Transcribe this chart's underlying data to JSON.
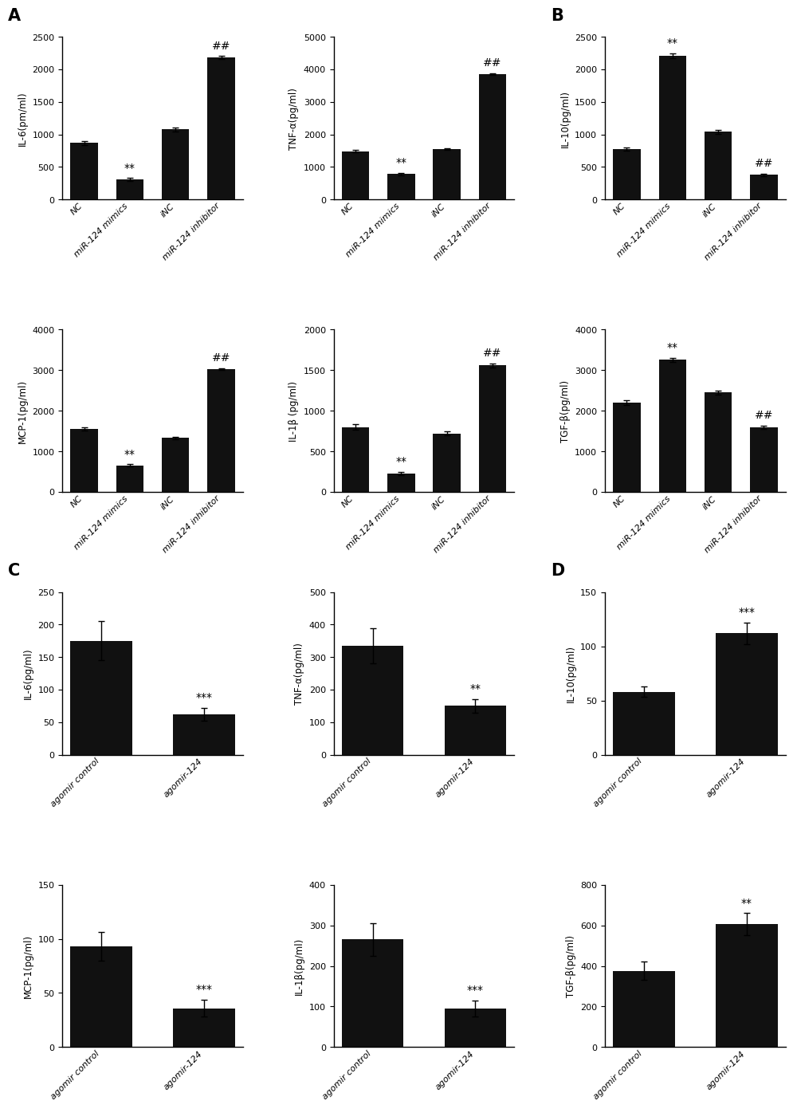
{
  "panel_A": {
    "IL6": {
      "categories": [
        "NC",
        "miR-124 mimics",
        "iNC",
        "miR-124 inhibitor"
      ],
      "values": [
        870,
        310,
        1080,
        2180
      ],
      "errors": [
        30,
        20,
        30,
        25
      ],
      "ylabel": "IL-6(pm/ml)",
      "ylim": [
        0,
        2500
      ],
      "yticks": [
        0,
        500,
        1000,
        1500,
        2000,
        2500
      ],
      "annotations": [
        {
          "idx": 1,
          "text": "**"
        },
        {
          "idx": 3,
          "text": "##"
        }
      ]
    },
    "TNFa": {
      "categories": [
        "NC",
        "miR-124 mimics",
        "iNC",
        "miR-124 inhibitor"
      ],
      "values": [
        1480,
        780,
        1550,
        3850
      ],
      "errors": [
        40,
        35,
        30,
        30
      ],
      "ylabel": "TNF-α(pg/ml)",
      "ylim": [
        0,
        5000
      ],
      "yticks": [
        0,
        1000,
        2000,
        3000,
        4000,
        5000
      ],
      "annotations": [
        {
          "idx": 1,
          "text": "**"
        },
        {
          "idx": 3,
          "text": "##"
        }
      ]
    },
    "MCP1": {
      "categories": [
        "NC",
        "miR-124 mimics",
        "iNC",
        "miR-124 inhibitor"
      ],
      "values": [
        1550,
        650,
        1330,
        3020
      ],
      "errors": [
        40,
        30,
        30,
        25
      ],
      "ylabel": "MCP-1(pg/ml)",
      "ylim": [
        0,
        4000
      ],
      "yticks": [
        0,
        1000,
        2000,
        3000,
        4000
      ],
      "annotations": [
        {
          "idx": 1,
          "text": "**"
        },
        {
          "idx": 3,
          "text": "##"
        }
      ]
    },
    "IL1b": {
      "categories": [
        "NC",
        "miR-124 mimics",
        "iNC",
        "miR-124 inhibitor"
      ],
      "values": [
        800,
        230,
        720,
        1560
      ],
      "errors": [
        35,
        20,
        25,
        25
      ],
      "ylabel": "IL-1β (pg/ml)",
      "ylim": [
        0,
        2000
      ],
      "yticks": [
        0,
        500,
        1000,
        1500,
        2000
      ],
      "annotations": [
        {
          "idx": 1,
          "text": "**"
        },
        {
          "idx": 3,
          "text": "##"
        }
      ]
    }
  },
  "panel_B": {
    "IL10": {
      "categories": [
        "NC",
        "miR-124 mimics",
        "iNC",
        "miR-124 inhibitor"
      ],
      "values": [
        780,
        2210,
        1040,
        380
      ],
      "errors": [
        25,
        40,
        30,
        20
      ],
      "ylabel": "IL-10(pg/ml)",
      "ylim": [
        0,
        2500
      ],
      "yticks": [
        0,
        500,
        1000,
        1500,
        2000,
        2500
      ],
      "annotations": [
        {
          "idx": 1,
          "text": "**"
        },
        {
          "idx": 3,
          "text": "##"
        }
      ]
    },
    "TGFb": {
      "categories": [
        "NC",
        "miR-124 mimics",
        "iNC",
        "miR-124 inhibitor"
      ],
      "values": [
        2200,
        3250,
        2450,
        1600
      ],
      "errors": [
        50,
        50,
        50,
        40
      ],
      "ylabel": "TGF-β(pg/ml)",
      "ylim": [
        0,
        4000
      ],
      "yticks": [
        0,
        1000,
        2000,
        3000,
        4000
      ],
      "annotations": [
        {
          "idx": 1,
          "text": "**"
        },
        {
          "idx": 3,
          "text": "##"
        }
      ]
    }
  },
  "panel_C": {
    "IL6": {
      "categories": [
        "agomir control",
        "agomir-124"
      ],
      "values": [
        175,
        62
      ],
      "errors": [
        30,
        10
      ],
      "ylabel": "IL-6(pg/ml)",
      "ylim": [
        0,
        250
      ],
      "yticks": [
        0,
        50,
        100,
        150,
        200,
        250
      ],
      "annotations": [
        {
          "idx": 1,
          "text": "***"
        }
      ]
    },
    "TNFa": {
      "categories": [
        "agomir control",
        "agomir-124"
      ],
      "values": [
        335,
        150
      ],
      "errors": [
        55,
        20
      ],
      "ylabel": "TNF-α(pg/ml)",
      "ylim": [
        0,
        500
      ],
      "yticks": [
        0,
        100,
        200,
        300,
        400,
        500
      ],
      "annotations": [
        {
          "idx": 1,
          "text": "**"
        }
      ]
    },
    "MCP1": {
      "categories": [
        "agomir control",
        "agomir-124"
      ],
      "values": [
        93,
        36
      ],
      "errors": [
        13,
        8
      ],
      "ylabel": "MCP-1(pg/ml)",
      "ylim": [
        0,
        150
      ],
      "yticks": [
        0,
        50,
        100,
        150
      ],
      "annotations": [
        {
          "idx": 1,
          "text": "***"
        }
      ]
    },
    "IL1b": {
      "categories": [
        "agomir control",
        "agomir-124"
      ],
      "values": [
        265,
        95
      ],
      "errors": [
        40,
        20
      ],
      "ylabel": "IL-1β(pg/ml)",
      "ylim": [
        0,
        400
      ],
      "yticks": [
        0,
        100,
        200,
        300,
        400
      ],
      "annotations": [
        {
          "idx": 1,
          "text": "***"
        }
      ]
    }
  },
  "panel_D": {
    "IL10": {
      "categories": [
        "agomir control",
        "agomir-124"
      ],
      "values": [
        58,
        112
      ],
      "errors": [
        5,
        10
      ],
      "ylabel": "IL-10(pg/ml)",
      "ylim": [
        0,
        150
      ],
      "yticks": [
        0,
        50,
        100,
        150
      ],
      "annotations": [
        {
          "idx": 1,
          "text": "***"
        }
      ]
    },
    "TGFb": {
      "categories": [
        "agomir control",
        "agomir-124"
      ],
      "values": [
        375,
        605
      ],
      "errors": [
        45,
        55
      ],
      "ylabel": "TGF-β(pg/ml)",
      "ylim": [
        0,
        800
      ],
      "yticks": [
        0,
        200,
        400,
        600,
        800
      ],
      "annotations": [
        {
          "idx": 1,
          "text": "**"
        }
      ]
    }
  },
  "bar_color": "#111111",
  "bar_width": 0.6,
  "font_size_label": 8.5,
  "font_size_tick": 8,
  "font_size_annot": 10,
  "font_size_panel": 15
}
